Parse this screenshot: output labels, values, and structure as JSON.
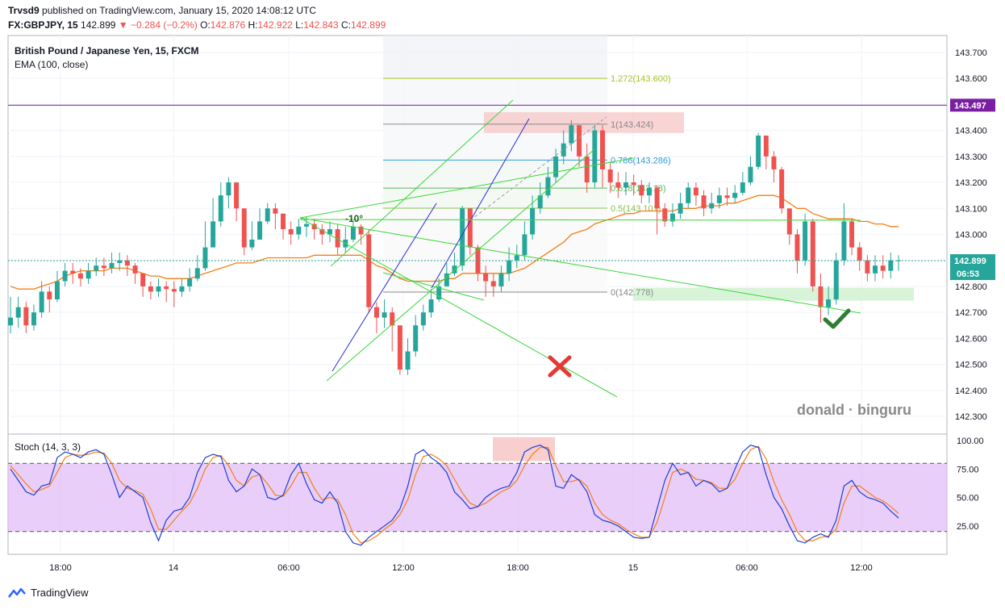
{
  "header": {
    "publisher": "Trvsd9",
    "published_text": "published on TradingView.com, January 15, 2020 14:08:12 UTC",
    "symbol": "FX:GBPJPY, 15",
    "last": "142.899",
    "change": "▼ −0.284 (−0.2%)",
    "o_label": "O:",
    "o": "142.876",
    "h_label": "H:",
    "h": "142.922",
    "l_label": "L:",
    "l": "142.843",
    "c_label": "C:",
    "c": "142.899"
  },
  "legend": {
    "title": "British Pound / Japanese Yen, 15, FXCM",
    "ema": "EMA (100, close)"
  },
  "stoch_legend": "Stoch (14, 3, 3)",
  "watermark": "donald · binguru",
  "footer": {
    "brand": "TradingView",
    "logo_icon": "tradingview-logo-icon"
  },
  "annotations": {
    "angle": "-10°",
    "fib": [
      {
        "label": "1.272(143.600)",
        "price": 143.6,
        "color": "#a4c620"
      },
      {
        "label": "1(143.424)",
        "price": 143.424,
        "color": "#888888"
      },
      {
        "label": "0.786(143.286)",
        "price": 143.286,
        "color": "#2f9bd6"
      },
      {
        "label": "0.618(143.18)",
        "price": 143.178,
        "color": "#5db85c"
      },
      {
        "label": "0.5(143.101)",
        "price": 143.101,
        "color": "#8bc34a"
      },
      {
        "label": "0(142.778)",
        "price": 142.778,
        "color": "#888888"
      }
    ],
    "marks": [
      "red-x-icon",
      "green-checkmark-icon"
    ]
  },
  "colors": {
    "up": "#26a69a",
    "down": "#ef5350",
    "ema": "#f57f17",
    "hline": "#7b1fa2",
    "stoch_k": "#1e3fd6",
    "stoch_d": "#f57f17",
    "stoch_band": "#e1bef7",
    "price_line": "#26a69a"
  },
  "chart_data": {
    "type": "candlestick",
    "price_axis_ticks": [
      "143.700",
      "143.600",
      "143.500",
      "143.400",
      "143.300",
      "143.200",
      "143.100",
      "143.000",
      "142.900",
      "142.800",
      "142.700",
      "142.600",
      "142.500",
      "142.400",
      "142.300"
    ],
    "time_axis_ticks": [
      "18:00",
      "14",
      "06:00",
      "12:00",
      "18:00",
      "15",
      "06:00",
      "12:00"
    ],
    "ylim": [
      142.235,
      143.765
    ],
    "horizontal_line": {
      "price": 143.497,
      "label": "143.497"
    },
    "last_price": {
      "price": 142.899,
      "label": "142.899",
      "countdown": "06:53"
    },
    "candles_close": [
      142.68,
      142.72,
      142.65,
      142.7,
      142.78,
      142.75,
      142.82,
      142.86,
      142.85,
      142.83,
      142.86,
      142.88,
      142.87,
      142.89,
      142.9,
      142.88,
      142.85,
      142.8,
      142.78,
      142.8,
      142.79,
      142.78,
      142.8,
      142.83,
      142.87,
      142.95,
      143.05,
      143.15,
      143.2,
      143.1,
      142.95,
      142.98,
      143.05,
      143.1,
      143.08,
      143.02,
      143.0,
      143.03,
      143.04,
      143.02,
      143.0,
      143.02,
      142.95,
      142.98,
      143.03,
      143.0,
      142.72,
      142.68,
      142.7,
      142.65,
      142.48,
      142.55,
      142.65,
      142.7,
      142.75,
      142.8,
      142.85,
      142.88,
      143.1,
      142.95,
      142.85,
      142.82,
      142.8,
      142.85,
      142.9,
      142.92,
      143.0,
      143.1,
      143.15,
      143.22,
      143.3,
      143.35,
      143.42,
      143.3,
      143.2,
      143.4,
      143.25,
      143.2,
      143.18,
      143.2,
      143.19,
      143.15,
      143.18,
      143.1,
      143.05,
      143.08,
      143.12,
      143.18,
      143.15,
      143.1,
      143.12,
      143.15,
      143.14,
      143.16,
      143.2,
      143.26,
      143.38,
      143.3,
      143.25,
      143.1,
      143.0,
      142.9,
      143.05,
      142.8,
      142.72,
      142.75,
      142.9,
      143.05,
      142.95,
      142.9,
      142.85,
      142.88,
      142.86,
      142.9,
      142.9
    ],
    "candles_high": [
      142.76,
      142.76,
      142.74,
      142.73,
      142.82,
      142.8,
      142.86,
      142.89,
      142.89,
      142.87,
      142.89,
      142.91,
      142.91,
      142.93,
      142.93,
      142.92,
      142.89,
      142.85,
      142.82,
      142.83,
      142.82,
      142.82,
      142.83,
      142.87,
      142.92,
      143.05,
      143.14,
      143.2,
      143.22,
      143.18,
      143.05,
      143.05,
      143.1,
      143.12,
      143.12,
      143.08,
      143.05,
      143.06,
      143.07,
      143.06,
      143.04,
      143.05,
      143.04,
      143.03,
      143.05,
      143.04,
      143.02,
      142.74,
      142.75,
      142.72,
      142.65,
      142.6,
      142.69,
      142.73,
      142.79,
      142.83,
      142.89,
      142.93,
      143.11,
      143.1,
      142.96,
      142.88,
      142.85,
      142.88,
      142.95,
      142.96,
      143.05,
      143.15,
      143.2,
      143.26,
      143.33,
      143.4,
      143.44,
      143.42,
      143.35,
      143.42,
      143.42,
      143.28,
      143.24,
      143.24,
      143.23,
      143.21,
      143.2,
      143.19,
      143.12,
      143.12,
      143.16,
      143.2,
      143.2,
      143.17,
      143.16,
      143.18,
      143.18,
      143.19,
      143.24,
      143.3,
      143.39,
      143.38,
      143.32,
      143.26,
      143.1,
      143.02,
      143.08,
      143.06,
      142.85,
      142.8,
      142.93,
      143.12,
      143.06,
      142.97,
      142.92,
      142.92,
      142.92,
      142.93,
      142.92
    ],
    "candles_low": [
      142.62,
      142.64,
      142.62,
      142.63,
      142.68,
      142.7,
      142.74,
      142.8,
      142.81,
      142.8,
      142.81,
      142.84,
      142.84,
      142.85,
      142.86,
      142.84,
      142.81,
      142.76,
      142.75,
      142.76,
      142.74,
      142.72,
      142.76,
      142.78,
      142.82,
      142.86,
      142.95,
      143.03,
      143.1,
      143.05,
      142.92,
      142.94,
      142.98,
      143.04,
      143.02,
      142.98,
      142.96,
      142.98,
      142.99,
      142.98,
      142.96,
      142.97,
      142.92,
      142.93,
      142.97,
      142.96,
      142.7,
      142.62,
      142.64,
      142.55,
      142.46,
      142.46,
      142.53,
      142.63,
      142.68,
      142.74,
      142.8,
      142.84,
      142.86,
      142.92,
      142.82,
      142.76,
      142.76,
      142.78,
      142.82,
      142.87,
      142.9,
      142.98,
      143.08,
      143.14,
      143.2,
      143.27,
      143.32,
      143.26,
      143.16,
      143.18,
      143.18,
      143.16,
      143.14,
      143.15,
      143.15,
      143.12,
      143.12,
      143.0,
      143.03,
      143.03,
      143.06,
      143.1,
      143.11,
      143.07,
      143.08,
      143.1,
      143.11,
      143.12,
      143.15,
      143.19,
      143.25,
      143.25,
      143.2,
      143.08,
      142.96,
      142.85,
      142.88,
      142.78,
      142.66,
      142.69,
      142.73,
      142.88,
      142.92,
      142.86,
      142.82,
      142.82,
      142.83,
      142.83,
      142.86
    ],
    "ema_approx": [
      142.8,
      142.79,
      142.79,
      142.79,
      142.8,
      142.81,
      142.82,
      142.84,
      142.85,
      142.86,
      142.86,
      142.86,
      142.86,
      142.87,
      142.87,
      142.87,
      142.86,
      142.85,
      142.84,
      142.84,
      142.83,
      142.83,
      142.83,
      142.83,
      142.84,
      142.85,
      142.86,
      142.87,
      142.88,
      142.89,
      142.89,
      142.89,
      142.9,
      142.91,
      142.91,
      142.91,
      142.91,
      142.91,
      142.91,
      142.92,
      142.92,
      142.92,
      142.92,
      142.92,
      142.92,
      142.92,
      142.9,
      142.88,
      142.87,
      142.85,
      142.83,
      142.82,
      142.82,
      142.82,
      142.82,
      142.82,
      142.83,
      142.83,
      142.85,
      142.85,
      142.85,
      142.85,
      142.85,
      142.85,
      142.85,
      142.86,
      142.87,
      142.89,
      142.91,
      142.93,
      142.95,
      142.97,
      143.0,
      143.01,
      143.02,
      143.04,
      143.05,
      143.06,
      143.07,
      143.08,
      143.08,
      143.09,
      143.09,
      143.09,
      143.09,
      143.09,
      143.1,
      143.1,
      143.1,
      143.11,
      143.11,
      143.11,
      143.12,
      143.12,
      143.13,
      143.14,
      143.15,
      143.15,
      143.15,
      143.14,
      143.12,
      143.1,
      143.1,
      143.08,
      143.07,
      143.06,
      143.06,
      143.06,
      143.06,
      143.05,
      143.05,
      143.04,
      143.04,
      143.03,
      143.03
    ],
    "stoch_ylim": [
      0,
      105
    ],
    "stoch_ticks": [
      "100.00",
      "75.00",
      "50.00",
      "25.00"
    ],
    "stoch_bands": [
      20,
      80
    ],
    "stoch_k": [
      75,
      65,
      55,
      52,
      60,
      62,
      85,
      90,
      88,
      85,
      90,
      92,
      88,
      70,
      50,
      60,
      55,
      50,
      28,
      12,
      30,
      38,
      40,
      50,
      72,
      85,
      88,
      86,
      65,
      55,
      60,
      75,
      70,
      50,
      48,
      52,
      70,
      80,
      62,
      48,
      45,
      55,
      45,
      20,
      10,
      8,
      15,
      20,
      25,
      30,
      40,
      60,
      88,
      92,
      85,
      80,
      72,
      55,
      48,
      40,
      42,
      50,
      55,
      58,
      60,
      72,
      90,
      94,
      96,
      92,
      60,
      58,
      70,
      65,
      55,
      35,
      30,
      28,
      25,
      20,
      15,
      14,
      15,
      40,
      65,
      80,
      70,
      72,
      60,
      65,
      62,
      55,
      58,
      75,
      90,
      96,
      94,
      70,
      50,
      40,
      25,
      12,
      10,
      15,
      18,
      15,
      30,
      60,
      65,
      55,
      50,
      48,
      45,
      38,
      32
    ],
    "stoch_d": [
      78,
      70,
      62,
      55,
      57,
      60,
      72,
      85,
      88,
      87,
      88,
      90,
      89,
      80,
      65,
      58,
      56,
      53,
      40,
      22,
      22,
      30,
      38,
      45,
      58,
      75,
      85,
      87,
      78,
      65,
      60,
      68,
      70,
      62,
      52,
      51,
      60,
      72,
      72,
      58,
      48,
      50,
      48,
      35,
      18,
      10,
      12,
      16,
      22,
      27,
      35,
      48,
      70,
      86,
      88,
      84,
      78,
      66,
      54,
      45,
      42,
      45,
      50,
      55,
      58,
      65,
      78,
      88,
      94,
      94,
      78,
      64,
      64,
      66,
      60,
      45,
      35,
      30,
      27,
      22,
      18,
      15,
      15,
      28,
      50,
      72,
      75,
      72,
      66,
      65,
      63,
      58,
      58,
      66,
      80,
      92,
      95,
      84,
      64,
      48,
      35,
      20,
      12,
      12,
      15,
      16,
      22,
      45,
      60,
      60,
      55,
      50,
      47,
      42,
      36
    ]
  }
}
